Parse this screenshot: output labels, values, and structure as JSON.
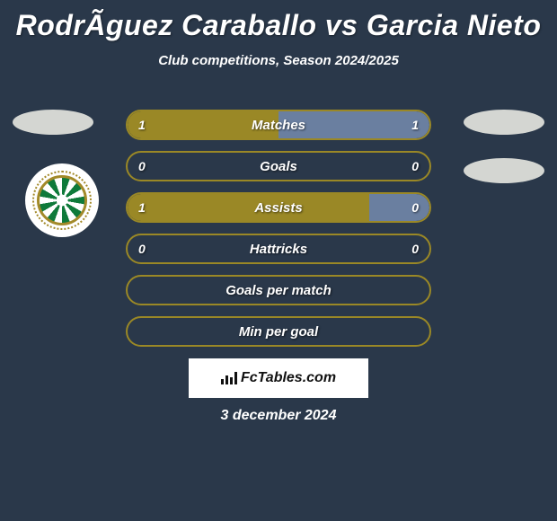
{
  "title": "RodrÃ­guez Caraballo vs Garcia Nieto",
  "subtitle": "Club competitions, Season 2024/2025",
  "date": "3 december 2024",
  "brand": "FcTables.com",
  "colors": {
    "background": "#2a384a",
    "bar_left": "#9a8826",
    "bar_right": "#6a7fa0",
    "border": "#9a8826",
    "oval": "#d4d6d2",
    "text": "#ffffff"
  },
  "stats": [
    {
      "label": "Matches",
      "left_value": "1",
      "right_value": "1",
      "left_pct": 50,
      "right_pct": 50
    },
    {
      "label": "Goals",
      "left_value": "0",
      "right_value": "0",
      "left_pct": 0,
      "right_pct": 0
    },
    {
      "label": "Assists",
      "left_value": "1",
      "right_value": "0",
      "left_pct": 80,
      "right_pct": 20
    },
    {
      "label": "Hattricks",
      "left_value": "0",
      "right_value": "0",
      "left_pct": 0,
      "right_pct": 0
    }
  ],
  "plain_rows": [
    {
      "label": "Goals per match"
    },
    {
      "label": "Min per goal"
    }
  ]
}
